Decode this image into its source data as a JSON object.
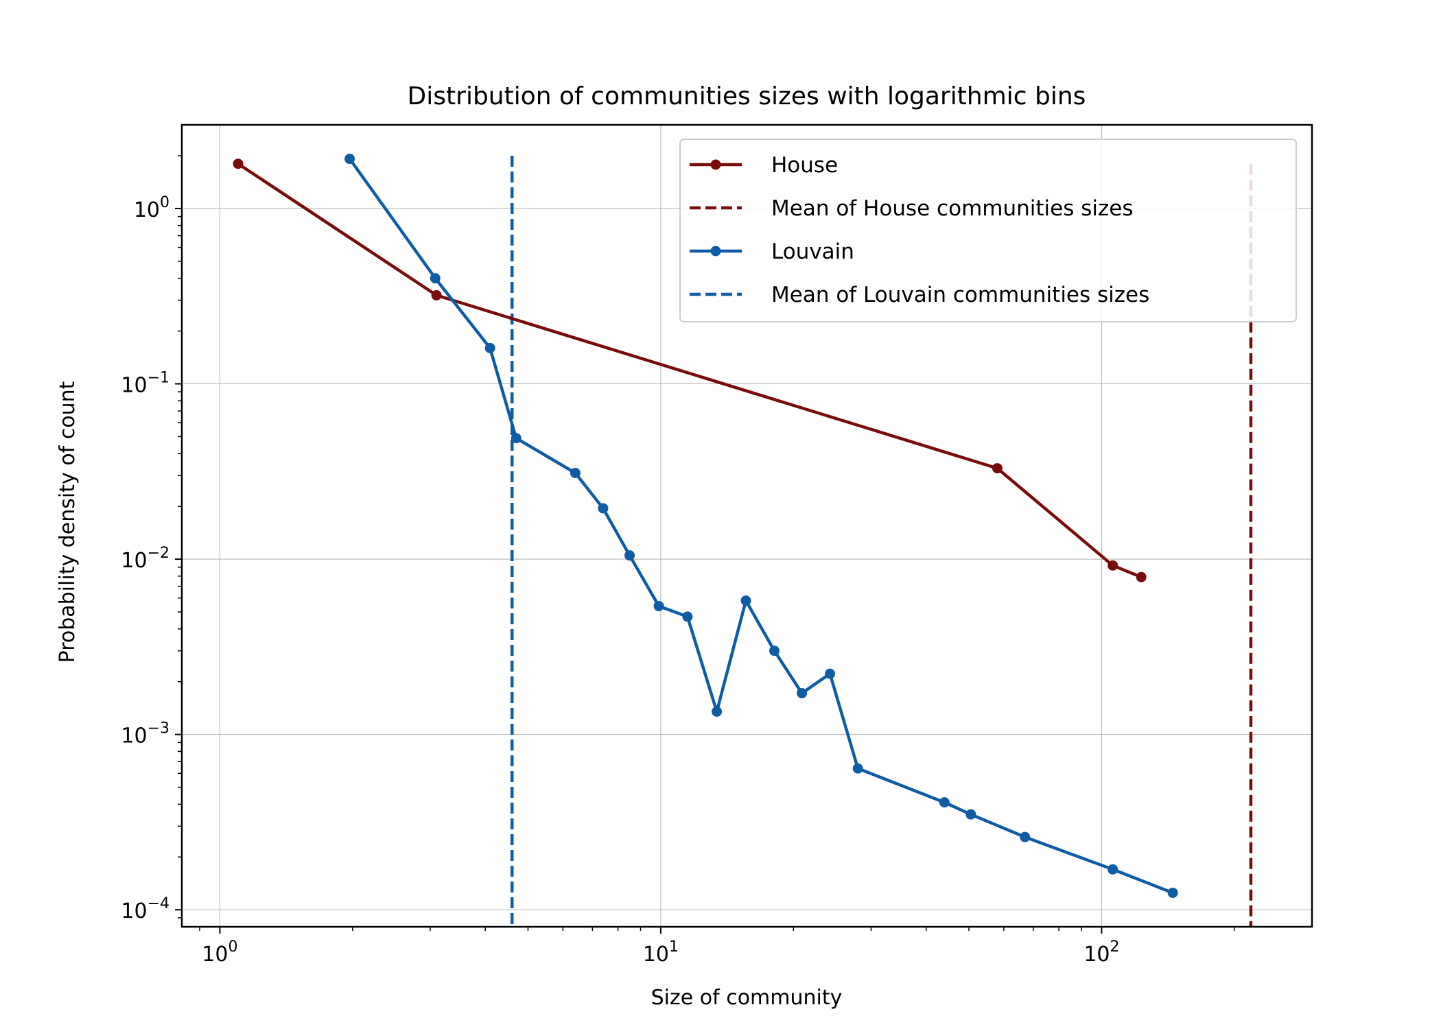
{
  "chart_data": {
    "type": "line",
    "title": "Distribution of communities sizes with logarithmic bins",
    "xlabel": "Size of community",
    "ylabel": "Probability density of count",
    "xscale": "log",
    "yscale": "log",
    "xlim": [
      0.82,
      300
    ],
    "ylim": [
      8e-05,
      3.0
    ],
    "grid": true,
    "legend_position": "top-right",
    "x_ticks": [
      {
        "value": 1,
        "base": "10",
        "exp": "0"
      },
      {
        "value": 10,
        "base": "10",
        "exp": "1"
      },
      {
        "value": 100,
        "base": "10",
        "exp": "2"
      }
    ],
    "y_ticks": [
      {
        "value": 1,
        "base": "10",
        "exp": "0"
      },
      {
        "value": 0.1,
        "base": "10",
        "exp": "−1"
      },
      {
        "value": 0.01,
        "base": "10",
        "exp": "−2"
      },
      {
        "value": 0.001,
        "base": "10",
        "exp": "−3"
      },
      {
        "value": 0.0001,
        "base": "10",
        "exp": "−4"
      }
    ],
    "series": [
      {
        "name": "House",
        "color": "#7a0b0b",
        "x": [
          1.1,
          3.1,
          58,
          106,
          123
        ],
        "y": [
          1.8,
          0.32,
          0.033,
          0.0092,
          0.0079
        ]
      },
      {
        "name": "Louvain",
        "color": "#0f5ca6",
        "x": [
          1.97,
          3.08,
          4.1,
          4.7,
          6.4,
          7.4,
          8.5,
          9.9,
          11.5,
          13.4,
          15.6,
          18.1,
          20.9,
          24.2,
          28.0,
          44,
          50.5,
          67,
          106,
          145
        ],
        "y": [
          1.92,
          0.4,
          0.16,
          0.049,
          0.031,
          0.0195,
          0.0105,
          0.0054,
          0.0047,
          0.00135,
          0.0058,
          0.003,
          0.00172,
          0.00222,
          0.00064,
          0.00041,
          0.00035,
          0.00026,
          0.00017,
          0.000125
        ]
      }
    ],
    "reference_lines": [
      {
        "name": "Mean of House communities sizes",
        "color": "#7a0b0b",
        "x": 218,
        "y_top": 1.8
      },
      {
        "name": "Mean of Louvain communities sizes",
        "color": "#0f5ca6",
        "x": 4.6,
        "y_top": 2.0
      }
    ]
  }
}
